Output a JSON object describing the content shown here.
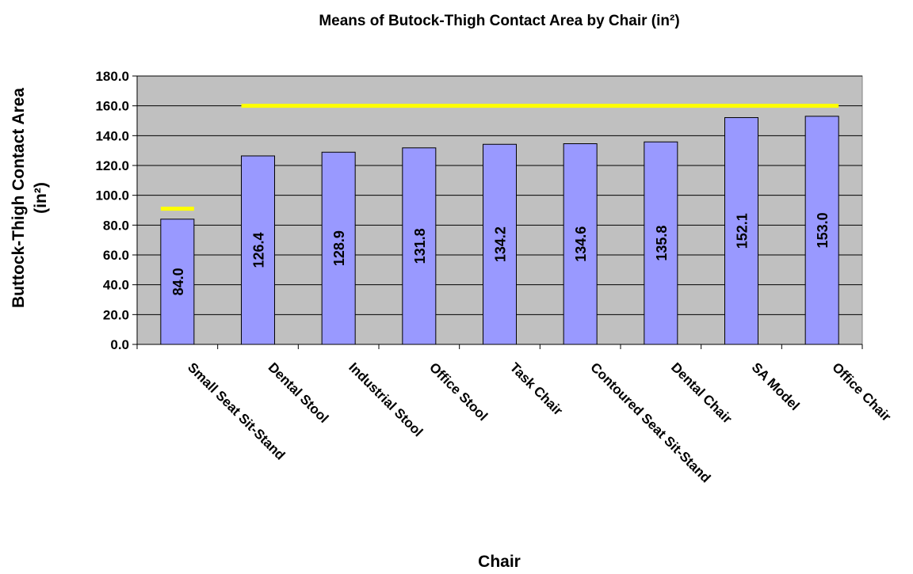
{
  "chart_data": {
    "type": "bar",
    "title": "Means of Butock-Thigh Contact Area by Chair (in²)",
    "xlabel": "Chair",
    "ylabel": [
      "Buttock-Thigh Contact Area",
      "(in²)"
    ],
    "categories": [
      "Small Seat Sit-Stand",
      "Dental Stool",
      "Industrial Stool",
      "Office Stool",
      "Task Chair",
      "Contoured Seat Sit-Stand",
      "Dental Chair",
      "SA Model",
      "Office Chair"
    ],
    "values": [
      84.0,
      126.4,
      128.9,
      131.8,
      134.2,
      134.6,
      135.8,
      152.1,
      153.0
    ],
    "value_labels": [
      "84.0",
      "126.4",
      "128.9",
      "131.8",
      "134.2",
      "134.6",
      "135.8",
      "152.1",
      "153.0"
    ],
    "color": "#9999ff",
    "ylim": [
      0,
      180
    ],
    "yticks": [
      {
        "value": 0,
        "label": "0.0"
      },
      {
        "value": 20,
        "label": "20.0"
      },
      {
        "value": 40,
        "label": "40.0"
      },
      {
        "value": 60,
        "label": "60.0"
      },
      {
        "value": 80,
        "label": "80.0"
      },
      {
        "value": 100,
        "label": "100.0"
      },
      {
        "value": 120,
        "label": "120.0"
      },
      {
        "value": 140,
        "label": "140.0"
      },
      {
        "value": 160,
        "label": "160.0"
      },
      {
        "value": 180,
        "label": "180.0"
      }
    ],
    "grid": true,
    "reference_lines": [
      {
        "value": 91,
        "from": 0,
        "to": 0,
        "color": "#ffff00"
      },
      {
        "value": 160,
        "from": 1,
        "to": 8,
        "color": "#ffff00"
      }
    ]
  }
}
